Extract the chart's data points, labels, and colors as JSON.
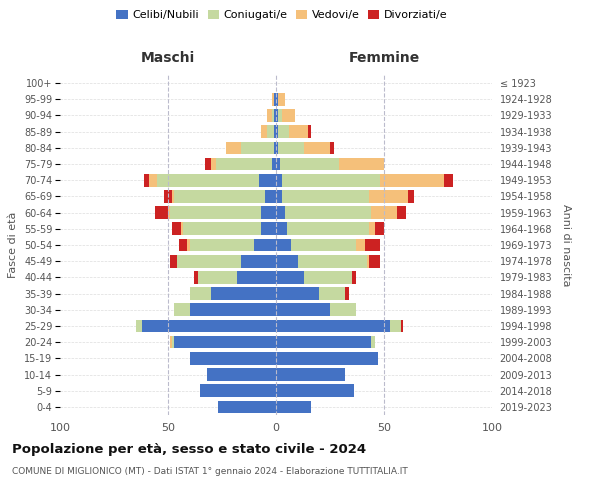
{
  "age_groups": [
    "0-4",
    "5-9",
    "10-14",
    "15-19",
    "20-24",
    "25-29",
    "30-34",
    "35-39",
    "40-44",
    "45-49",
    "50-54",
    "55-59",
    "60-64",
    "65-69",
    "70-74",
    "75-79",
    "80-84",
    "85-89",
    "90-94",
    "95-99",
    "100+"
  ],
  "birth_years": [
    "2019-2023",
    "2014-2018",
    "2009-2013",
    "2004-2008",
    "1999-2003",
    "1994-1998",
    "1989-1993",
    "1984-1988",
    "1979-1983",
    "1974-1978",
    "1969-1973",
    "1964-1968",
    "1959-1963",
    "1954-1958",
    "1949-1953",
    "1944-1948",
    "1939-1943",
    "1934-1938",
    "1929-1933",
    "1924-1928",
    "≤ 1923"
  ],
  "males": {
    "celibi": [
      27,
      35,
      32,
      40,
      47,
      62,
      40,
      30,
      18,
      16,
      10,
      7,
      7,
      5,
      8,
      2,
      1,
      1,
      1,
      1,
      0
    ],
    "coniugati": [
      0,
      0,
      0,
      0,
      1,
      3,
      7,
      10,
      18,
      30,
      30,
      36,
      42,
      42,
      47,
      26,
      15,
      3,
      1,
      0,
      0
    ],
    "vedovi": [
      0,
      0,
      0,
      0,
      1,
      0,
      0,
      0,
      0,
      0,
      1,
      1,
      1,
      1,
      4,
      2,
      7,
      3,
      2,
      1,
      0
    ],
    "divorziati": [
      0,
      0,
      0,
      0,
      0,
      0,
      0,
      0,
      2,
      3,
      4,
      4,
      6,
      4,
      2,
      3,
      0,
      0,
      0,
      0,
      0
    ]
  },
  "females": {
    "nubili": [
      16,
      36,
      32,
      47,
      44,
      53,
      25,
      20,
      13,
      10,
      7,
      5,
      4,
      3,
      3,
      2,
      1,
      1,
      1,
      1,
      0
    ],
    "coniugate": [
      0,
      0,
      0,
      0,
      2,
      5,
      12,
      12,
      22,
      32,
      30,
      38,
      40,
      40,
      45,
      27,
      12,
      5,
      2,
      0,
      0
    ],
    "vedove": [
      0,
      0,
      0,
      0,
      0,
      0,
      0,
      0,
      0,
      1,
      4,
      3,
      12,
      18,
      30,
      21,
      12,
      9,
      6,
      3,
      0
    ],
    "divorziate": [
      0,
      0,
      0,
      0,
      0,
      1,
      0,
      2,
      2,
      5,
      7,
      4,
      4,
      3,
      4,
      0,
      2,
      1,
      0,
      0,
      0
    ]
  },
  "colors": {
    "celibi": "#4472c4",
    "coniugati": "#c5d9a0",
    "vedovi": "#f5c07a",
    "divorziati": "#cc2222"
  },
  "title": "Popolazione per età, sesso e stato civile - 2024",
  "subtitle": "COMUNE DI MIGLIONICO (MT) - Dati ISTAT 1° gennaio 2024 - Elaborazione TUTTITALIA.IT",
  "xlim": 100,
  "xlabel_left": "Maschi",
  "xlabel_right": "Femmine",
  "ylabel_left": "Fasce di età",
  "ylabel_right": "Anni di nascita",
  "legend_labels": [
    "Celibi/Nubili",
    "Coniugati/e",
    "Vedovi/e",
    "Divorziati/e"
  ]
}
